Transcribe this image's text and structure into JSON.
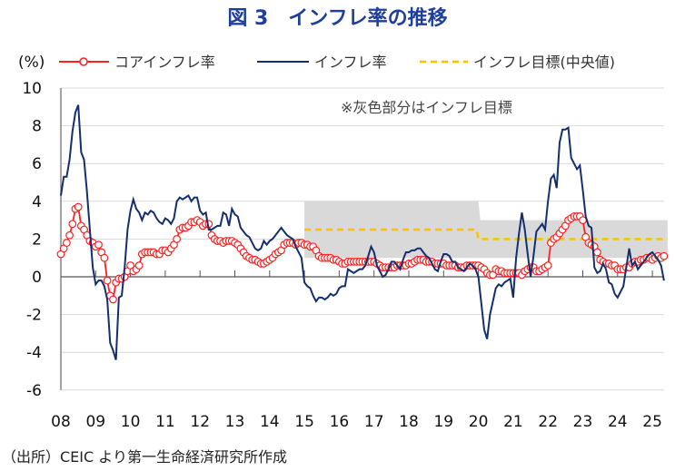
{
  "title": "図 3　インフレ率の推移",
  "source": "（出所）CEIC より第一生命経済研究所作成",
  "chart_data": {
    "type": "line",
    "title": "図 3　インフレ率の推移",
    "ylabel": "(%)",
    "ylim": [
      -6,
      10
    ],
    "yticks": [
      10,
      8,
      6,
      4,
      2,
      0,
      -2,
      -4,
      -6
    ],
    "negative_tick_color": "#ff0000",
    "xtick_labels": [
      "08",
      "09",
      "10",
      "11",
      "12",
      "13",
      "14",
      "15",
      "16",
      "17",
      "18",
      "19",
      "20",
      "21",
      "22",
      "23",
      "24",
      "25"
    ],
    "x_start": "2008-01",
    "x_frequency": "monthly",
    "grid": true,
    "legend_position": "top",
    "annotation": "※灰色部分はインフレ目標",
    "series": [
      {
        "name": "コアインフレ率",
        "color": "#ff2020",
        "marker": "open-circle",
        "values": [
          1.2,
          1.5,
          1.8,
          2.2,
          2.8,
          3.6,
          3.7,
          2.7,
          2.5,
          2.2,
          1.9,
          1.8,
          1.6,
          1.7,
          1.3,
          1.0,
          -0.2,
          -1.0,
          -1.2,
          -0.3,
          -0.1,
          -0.1,
          0.0,
          0.3,
          0.6,
          0.3,
          0.4,
          0.6,
          1.2,
          1.3,
          1.3,
          1.3,
          1.3,
          1.2,
          1.2,
          1.4,
          1.4,
          1.3,
          1.5,
          1.7,
          2.0,
          2.5,
          2.6,
          2.6,
          2.7,
          2.9,
          2.9,
          3.0,
          2.9,
          2.7,
          2.8,
          2.8,
          2.2,
          2.0,
          1.9,
          1.9,
          1.8,
          1.9,
          1.9,
          1.9,
          1.8,
          1.7,
          1.5,
          1.3,
          1.1,
          1.0,
          0.9,
          0.9,
          0.8,
          0.7,
          0.7,
          0.8,
          0.9,
          1.0,
          1.2,
          1.3,
          1.4,
          1.7,
          1.8,
          1.8,
          1.8,
          1.7,
          1.8,
          1.8,
          1.7,
          1.7,
          1.6,
          1.6,
          1.4,
          1.1,
          1.0,
          1.0,
          1.0,
          1.0,
          0.9,
          0.9,
          0.8,
          0.7,
          0.7,
          0.8,
          0.8,
          0.8,
          0.8,
          0.8,
          0.8,
          0.8,
          0.8,
          0.8,
          0.8,
          0.7,
          0.6,
          0.5,
          0.5,
          0.5,
          0.5,
          0.5,
          0.6,
          0.6,
          0.6,
          0.6,
          0.7,
          0.7,
          0.8,
          0.9,
          0.9,
          0.9,
          0.8,
          0.8,
          0.8,
          0.7,
          0.7,
          0.7,
          0.7,
          0.6,
          0.6,
          0.6,
          0.6,
          0.5,
          0.5,
          0.5,
          0.6,
          0.6,
          0.6,
          0.6,
          0.6,
          0.5,
          0.4,
          0.2,
          0.1,
          0.1,
          0.4,
          0.3,
          0.3,
          0.2,
          0.2,
          0.2,
          0.2,
          0.2,
          0.2,
          0.1,
          0.3,
          0.4,
          0.5,
          0.5,
          0.3,
          0.3,
          0.4,
          0.5,
          0.6,
          1.8,
          2.0,
          2.1,
          2.3,
          2.5,
          2.7,
          3.0,
          3.1,
          3.2,
          3.2,
          3.2,
          3.0,
          2.1,
          1.8,
          1.7,
          1.6,
          1.3,
          0.9,
          0.8,
          0.7,
          0.7,
          0.6,
          0.6,
          0.4,
          0.4,
          0.4,
          0.5,
          0.5,
          0.7,
          0.8,
          0.8,
          0.9,
          0.9,
          1.0,
          1.0,
          0.9,
          1.0,
          1.1,
          1.0,
          1.1
        ]
      },
      {
        "name": "インフレ率",
        "color": "#142f6e",
        "values": [
          4.3,
          5.3,
          5.3,
          6.2,
          7.7,
          8.7,
          9.1,
          6.6,
          6.2,
          4.5,
          2.5,
          0.5,
          -0.4,
          -0.2,
          -0.2,
          -0.5,
          -1.2,
          -3.5,
          -3.9,
          -4.4,
          -1.1,
          -1.0,
          0.5,
          2.5,
          3.5,
          4.1,
          3.6,
          3.4,
          3.0,
          3.4,
          3.3,
          3.5,
          3.4,
          3.1,
          2.9,
          2.8,
          3.1,
          3.0,
          2.8,
          3.1,
          4.0,
          4.2,
          4.1,
          4.2,
          4.3,
          4.0,
          4.2,
          4.2,
          3.5,
          3.3,
          3.4,
          2.5,
          2.5,
          2.6,
          2.7,
          2.7,
          3.4,
          3.3,
          2.7,
          3.6,
          3.3,
          3.2,
          2.6,
          2.4,
          2.2,
          2.1,
          1.8,
          1.5,
          1.4,
          1.5,
          1.9,
          1.7,
          1.9,
          2.0,
          2.2,
          2.4,
          2.6,
          2.4,
          2.2,
          2.1,
          2.0,
          1.6,
          1.3,
          1.0,
          -0.3,
          -0.5,
          -0.6,
          -1.0,
          -1.3,
          -1.1,
          -1.1,
          -1.2,
          -1.1,
          -0.9,
          -1.0,
          -0.9,
          -0.6,
          -0.5,
          -0.5,
          0.4,
          0.3,
          0.2,
          0.3,
          0.4,
          0.4,
          0.6,
          1.1,
          1.6,
          1.3,
          0.6,
          0.3,
          0.0,
          0.1,
          0.4,
          0.8,
          0.8,
          0.6,
          0.4,
          0.9,
          1.3,
          1.3,
          1.4,
          1.4,
          1.5,
          1.5,
          1.3,
          1.1,
          1.0,
          0.7,
          0.4,
          0.3,
          0.8,
          1.2,
          1.2,
          1.1,
          0.8,
          0.8,
          0.5,
          0.4,
          0.3,
          0.5,
          0.7,
          0.6,
          0.4,
          0.0,
          -1.4,
          -2.8,
          -3.3,
          -2.0,
          -1.3,
          -0.6,
          -0.4,
          -0.5,
          -0.3,
          -0.2,
          -0.1,
          -1.1,
          1.0,
          2.3,
          3.4,
          2.5,
          1.2,
          0.0,
          1.1,
          2.4,
          2.6,
          2.8,
          2.5,
          4.0,
          5.2,
          5.4,
          4.7,
          7.1,
          7.8,
          7.8,
          7.9,
          6.3,
          6.0,
          5.7,
          5.9,
          4.6,
          3.2,
          2.7,
          2.6,
          0.5,
          0.2,
          0.3,
          0.7,
          0.4,
          -0.3,
          -0.4,
          -0.9,
          -1.1,
          -0.8,
          -0.5,
          0.5,
          1.5,
          0.6,
          0.8,
          0.4,
          0.6,
          0.8,
          1.0,
          1.2,
          1.3,
          1.1,
          0.9,
          0.6,
          -0.2
        ]
      },
      {
        "name": "インフレ目標(中央値)",
        "color": "#ffc000",
        "style": "dashed",
        "segments": [
          {
            "from": "2015-01",
            "to": "2019-12",
            "value": 2.5
          },
          {
            "from": "2020-01",
            "to": "2025-05",
            "value": 2.0
          }
        ]
      }
    ],
    "target_band": {
      "color": "#d9d9d9",
      "ranges": [
        {
          "from": "2015-01",
          "to": "2019-12",
          "low": 1,
          "high": 4
        },
        {
          "from": "2020-01",
          "to": "2025-05",
          "low": 1,
          "high": 3
        }
      ]
    }
  }
}
